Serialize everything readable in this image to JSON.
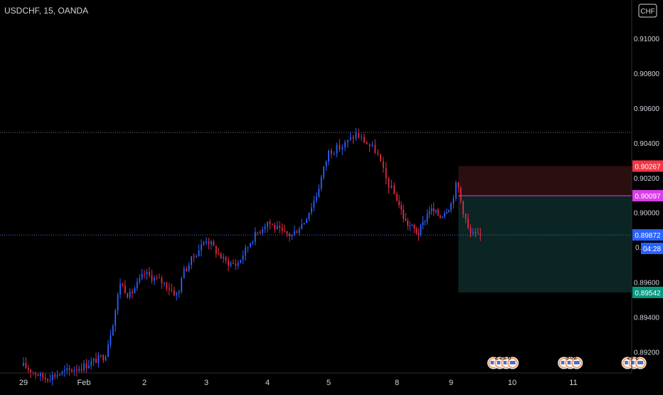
{
  "header": {
    "symbol_title": "USDCHF, 15, OANDA",
    "currency_button": "CHF"
  },
  "colors": {
    "background": "#000000",
    "up": "#2962ff",
    "down": "#e8283e",
    "text": "#d1d4dc",
    "stop_zone": "#2a0e10",
    "target_zone": "#0b2524",
    "stop_label": "#f23645",
    "entry_label": "#d83ee8",
    "current_label": "#2962ff",
    "target_label": "#089981"
  },
  "chart_data": {
    "type": "candlestick",
    "title": "USDCHF, 15, OANDA",
    "y_axis": {
      "min": 0.8908,
      "max": 0.9122,
      "ticks": [
        "0.91000",
        "0.90800",
        "0.90600",
        "0.90400",
        "0.90200",
        "0.90000",
        "0.89600",
        "0.89400",
        "0.89200"
      ]
    },
    "x_axis": {
      "ticks": [
        "29",
        "Feb",
        "2",
        "3",
        "4",
        "5",
        "8",
        "9",
        "10",
        "11"
      ]
    },
    "price_path": [
      {
        "x": 0.0,
        "y": 0.8912
      },
      {
        "x": 0.35,
        "y": 0.8905
      },
      {
        "x": 1.0,
        "y": 0.8912
      },
      {
        "x": 1.35,
        "y": 0.8918
      },
      {
        "x": 1.5,
        "y": 0.894
      },
      {
        "x": 1.6,
        "y": 0.896
      },
      {
        "x": 1.75,
        "y": 0.8952
      },
      {
        "x": 2.0,
        "y": 0.8965
      },
      {
        "x": 2.3,
        "y": 0.896
      },
      {
        "x": 2.55,
        "y": 0.8952
      },
      {
        "x": 2.6,
        "y": 0.8964
      },
      {
        "x": 2.8,
        "y": 0.8975
      },
      {
        "x": 3.0,
        "y": 0.8985
      },
      {
        "x": 3.3,
        "y": 0.8972
      },
      {
        "x": 3.5,
        "y": 0.897
      },
      {
        "x": 3.75,
        "y": 0.8985
      },
      {
        "x": 4.0,
        "y": 0.8995
      },
      {
        "x": 4.25,
        "y": 0.8988
      },
      {
        "x": 4.4,
        "y": 0.8987
      },
      {
        "x": 4.6,
        "y": 0.8995
      },
      {
        "x": 4.8,
        "y": 0.901
      },
      {
        "x": 5.0,
        "y": 0.9035
      },
      {
        "x": 5.2,
        "y": 0.9038
      },
      {
        "x": 5.4,
        "y": 0.9045
      },
      {
        "x": 5.7,
        "y": 0.9035
      },
      {
        "x": 5.85,
        "y": 0.9018
      },
      {
        "x": 6.0,
        "y": 0.9008
      },
      {
        "x": 6.15,
        "y": 0.8995
      },
      {
        "x": 6.4,
        "y": 0.8988
      },
      {
        "x": 6.6,
        "y": 0.9002
      },
      {
        "x": 6.8,
        "y": 0.8998
      },
      {
        "x": 7.0,
        "y": 0.9005
      },
      {
        "x": 7.1,
        "y": 0.9018
      },
      {
        "x": 7.15,
        "y": 0.9008
      },
      {
        "x": 7.3,
        "y": 0.8988
      },
      {
        "x": 7.45,
        "y": 0.8986
      },
      {
        "x": 7.5,
        "y": 0.8987
      }
    ],
    "horizontal_lines": [
      {
        "name": "session-high",
        "value": 0.9046,
        "style": "dotted"
      },
      {
        "name": "current-price",
        "value": 0.89872,
        "style": "dotted"
      }
    ],
    "position": {
      "start_x": 7.12,
      "end_x": 10.2,
      "stop": 0.90267,
      "entry": 0.90097,
      "target": 0.89542
    },
    "price_labels": [
      {
        "name": "stop-price",
        "text": "0.90267",
        "value": 0.90267,
        "color": "#f23645"
      },
      {
        "name": "entry-price",
        "text": "0.90097",
        "value": 0.90097,
        "color": "#d83ee8"
      },
      {
        "name": "current-price",
        "text": "0.89872",
        "value": 0.89872,
        "color": "#2962ff"
      },
      {
        "name": "target-price",
        "text": "0.89542",
        "value": 0.89542,
        "color": "#089981"
      }
    ],
    "countdown": "04:28",
    "axis_partial_label": "0.",
    "event_groups": [
      {
        "x": 7.85,
        "labels": [
          "2",
          "22",
          "8"
        ]
      },
      {
        "x": 8.95,
        "labels": [
          "5",
          "02"
        ]
      },
      {
        "x": 9.99,
        "labels": [
          "27",
          "2"
        ]
      }
    ]
  }
}
